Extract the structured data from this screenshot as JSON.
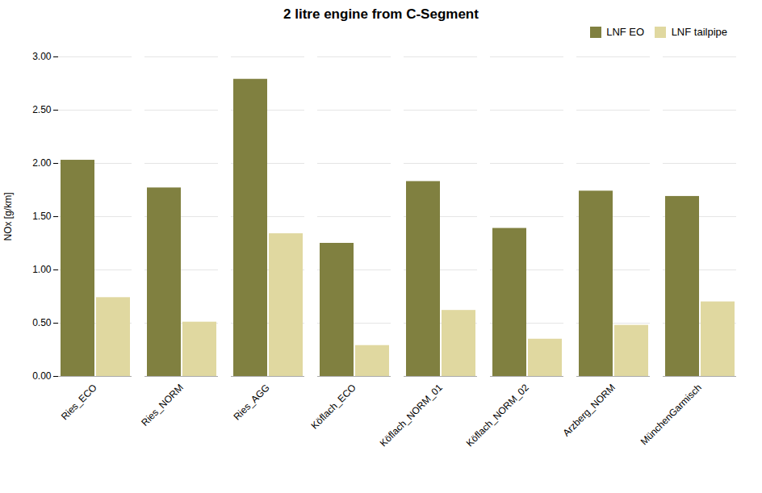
{
  "chart_data": {
    "type": "bar",
    "title": "2 litre engine from C-Segment",
    "ylabel": "NOx [g/km]",
    "categories": [
      "Ries_ECO",
      "Ries_NORM",
      "Ries_AGG",
      "Köflach_ECO",
      "Köflach_NORM_01",
      "Köflach_NORM_02",
      "Arzberg_NORM",
      "MünchenGarmisch"
    ],
    "series": [
      {
        "name": "LNF EO",
        "color": "#808040",
        "values": [
          2.03,
          1.77,
          2.79,
          1.25,
          1.83,
          1.39,
          1.74,
          1.69
        ]
      },
      {
        "name": "LNF tailpipe",
        "color": "#e0d8a0",
        "values": [
          0.74,
          0.51,
          1.34,
          0.29,
          0.62,
          0.35,
          0.48,
          0.7
        ]
      }
    ],
    "ylim": [
      0,
      3.0
    ],
    "yticks": [
      {
        "value": 0,
        "label": "0.00"
      },
      {
        "value": 0.5,
        "label": "0.50"
      },
      {
        "value": 1,
        "label": "1.00"
      },
      {
        "value": 1.5,
        "label": "1.50"
      },
      {
        "value": 2,
        "label": "2.00"
      },
      {
        "value": 2.5,
        "label": "2.50"
      },
      {
        "value": 3,
        "label": "3.00"
      }
    ],
    "grid": true,
    "legend": "upper right"
  }
}
